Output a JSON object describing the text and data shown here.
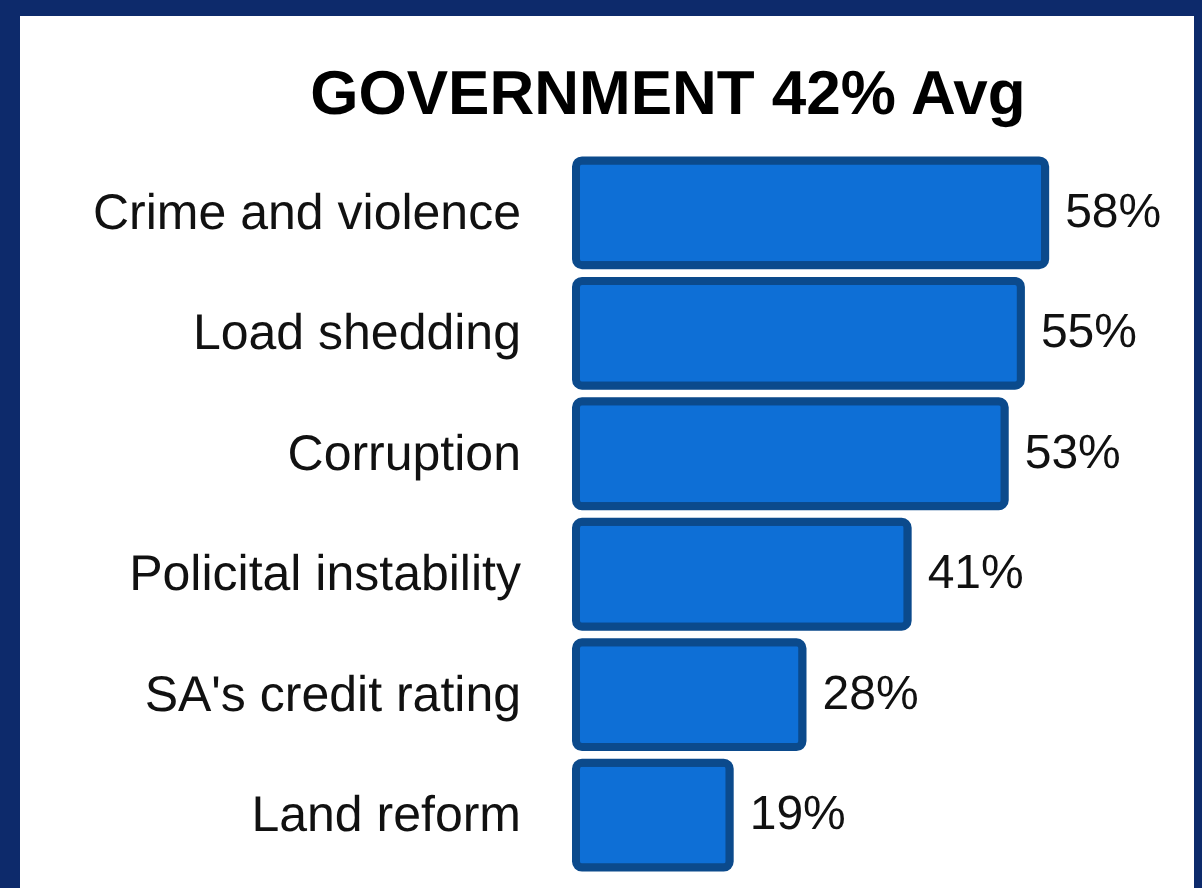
{
  "chart_data": {
    "type": "bar",
    "orientation": "horizontal",
    "title": "GOVERNMENT 42% Avg",
    "categories": [
      "Crime and violence",
      "Load shedding",
      "Corruption",
      "Policital instability",
      "SA's credit rating",
      "Land reform"
    ],
    "values": [
      58,
      55,
      53,
      41,
      28,
      19
    ],
    "value_labels": [
      "58%",
      "55%",
      "53%",
      "41%",
      "28%",
      "19%"
    ],
    "color": "#0e6fd6"
  }
}
